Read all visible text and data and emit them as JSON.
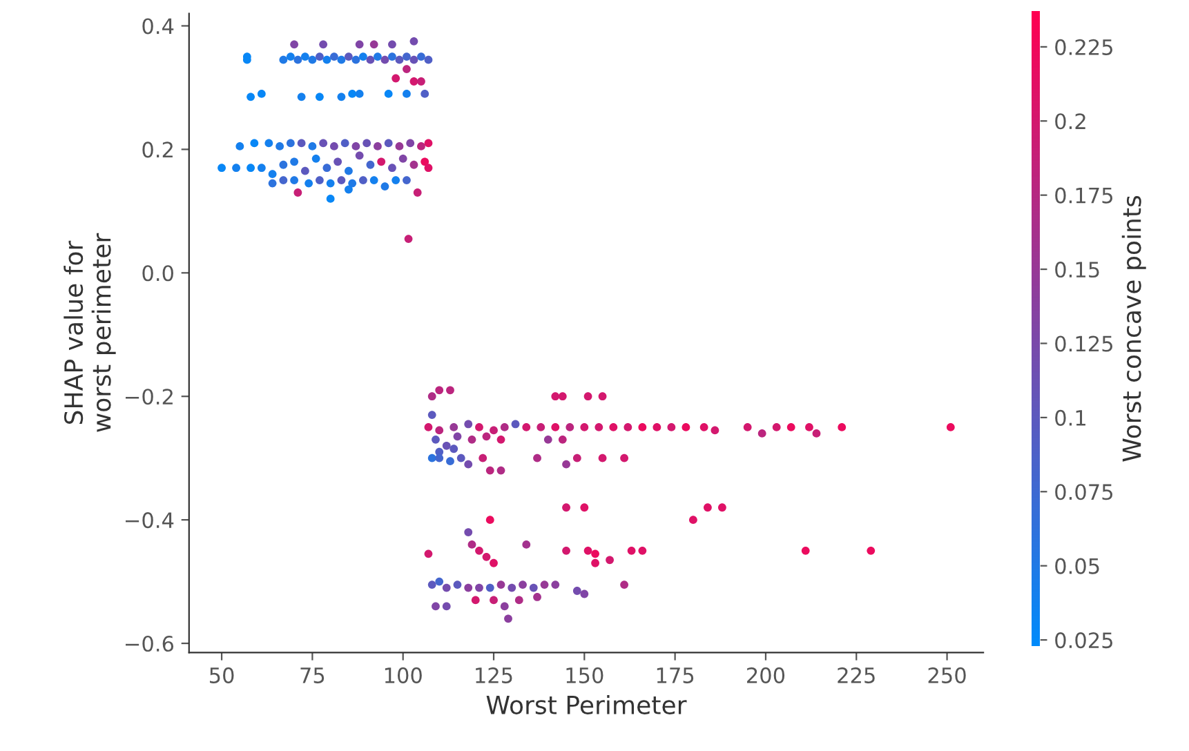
{
  "chart_data": {
    "type": "scatter",
    "xlabel": "Worst Perimeter",
    "ylabel": "SHAP value for\nworst perimeter",
    "clabel": "Worst concave points",
    "xlim": [
      41,
      260
    ],
    "ylim": [
      -0.615,
      0.42
    ],
    "xticks": [
      50,
      75,
      100,
      125,
      150,
      175,
      200,
      225,
      250
    ],
    "yticks": [
      -0.6,
      -0.4,
      -0.2,
      {
        "value": 0,
        "label": "0.0"
      },
      0.2,
      0.4
    ],
    "clim": [
      0.023,
      0.237
    ],
    "cticks": [
      0.025,
      0.05,
      0.075,
      0.1,
      0.125,
      0.15,
      0.175,
      0.2,
      0.225
    ],
    "marker": "circle",
    "grid": false,
    "legend": false,
    "series": [
      {
        "x": [
          57,
          57,
          67,
          69,
          71,
          73,
          75,
          77,
          79,
          81,
          83,
          85,
          87,
          89,
          91,
          93,
          95,
          97,
          99,
          101,
          103,
          105,
          107,
          70,
          78,
          88,
          92,
          97,
          103,
          98,
          101,
          103,
          105,
          58,
          61,
          72,
          77,
          83,
          86,
          88,
          96,
          101,
          106,
          55,
          59,
          63,
          66,
          69,
          72,
          75,
          78,
          81,
          84,
          87,
          90,
          93,
          96,
          99,
          102,
          105,
          107,
          50,
          54,
          58,
          61,
          64,
          67,
          70,
          73,
          76,
          79,
          82,
          85,
          88,
          91,
          94,
          97,
          100,
          103,
          106,
          107,
          64,
          67,
          70,
          74,
          77,
          80,
          83,
          86,
          89,
          92,
          95,
          98,
          101,
          71,
          80,
          85,
          104,
          101.5,
          108,
          110,
          113,
          142,
          144,
          151,
          155,
          108,
          107,
          110,
          114,
          118,
          121,
          125,
          128,
          131,
          134,
          138,
          142,
          146,
          150,
          154,
          158,
          162,
          166,
          170,
          174,
          178,
          183,
          186,
          195,
          199,
          203,
          207,
          212,
          214,
          221,
          251,
          109,
          112,
          115,
          119,
          123,
          127,
          140,
          144,
          110,
          114,
          108,
          110,
          113,
          116,
          118,
          122,
          137,
          145,
          148,
          155,
          161,
          124,
          127,
          145,
          150,
          180,
          184,
          188,
          124,
          118,
          119,
          121,
          123,
          125,
          134,
          107,
          145,
          151,
          153,
          153,
          157,
          163,
          166,
          211,
          229,
          108,
          110,
          112,
          115,
          118,
          121,
          124,
          127,
          130,
          133,
          136,
          139,
          142,
          148,
          150,
          161,
          109,
          112,
          120,
          125,
          128,
          129,
          132,
          137
        ],
        "values": [
          0.35,
          0.345,
          0.345,
          0.35,
          0.345,
          0.35,
          0.345,
          0.35,
          0.345,
          0.35,
          0.345,
          0.35,
          0.345,
          0.35,
          0.345,
          0.35,
          0.345,
          0.35,
          0.345,
          0.35,
          0.345,
          0.35,
          0.345,
          0.37,
          0.37,
          0.37,
          0.37,
          0.37,
          0.375,
          0.315,
          0.33,
          0.31,
          0.31,
          0.285,
          0.29,
          0.285,
          0.285,
          0.285,
          0.29,
          0.29,
          0.29,
          0.29,
          0.29,
          0.205,
          0.21,
          0.21,
          0.205,
          0.21,
          0.21,
          0.205,
          0.21,
          0.205,
          0.21,
          0.205,
          0.21,
          0.205,
          0.21,
          0.205,
          0.21,
          0.205,
          0.21,
          0.17,
          0.17,
          0.17,
          0.17,
          0.16,
          0.175,
          0.18,
          0.165,
          0.185,
          0.17,
          0.18,
          0.165,
          0.19,
          0.175,
          0.18,
          0.17,
          0.185,
          0.175,
          0.18,
          0.17,
          0.145,
          0.15,
          0.15,
          0.145,
          0.15,
          0.145,
          0.15,
          0.145,
          0.15,
          0.15,
          0.14,
          0.15,
          0.15,
          0.13,
          0.12,
          0.135,
          0.13,
          0.055,
          -0.2,
          -0.19,
          -0.19,
          -0.2,
          -0.2,
          -0.2,
          -0.2,
          -0.23,
          -0.25,
          -0.255,
          -0.25,
          -0.245,
          -0.25,
          -0.255,
          -0.25,
          -0.245,
          -0.25,
          -0.25,
          -0.25,
          -0.25,
          -0.25,
          -0.25,
          -0.25,
          -0.25,
          -0.25,
          -0.25,
          -0.25,
          -0.25,
          -0.25,
          -0.255,
          -0.25,
          -0.26,
          -0.25,
          -0.25,
          -0.25,
          -0.26,
          -0.25,
          -0.25,
          -0.27,
          -0.28,
          -0.265,
          -0.27,
          -0.265,
          -0.27,
          -0.27,
          -0.27,
          -0.29,
          -0.285,
          -0.3,
          -0.3,
          -0.305,
          -0.3,
          -0.31,
          -0.3,
          -0.3,
          -0.31,
          -0.3,
          -0.3,
          -0.3,
          -0.32,
          -0.32,
          -0.38,
          -0.38,
          -0.4,
          -0.38,
          -0.38,
          -0.4,
          -0.42,
          -0.44,
          -0.45,
          -0.46,
          -0.47,
          -0.44,
          -0.455,
          -0.45,
          -0.45,
          -0.455,
          -0.47,
          -0.465,
          -0.45,
          -0.45,
          -0.45,
          -0.45,
          -0.505,
          -0.5,
          -0.51,
          -0.505,
          -0.51,
          -0.51,
          -0.51,
          -0.505,
          -0.51,
          -0.505,
          -0.51,
          -0.505,
          -0.505,
          -0.515,
          -0.52,
          -0.505,
          -0.54,
          -0.54,
          -0.53,
          -0.53,
          -0.54,
          -0.56,
          -0.53,
          -0.525
        ],
        "cvalues": [
          0.03,
          0.03,
          0.05,
          0.04,
          0.06,
          0.04,
          0.05,
          0.09,
          0.04,
          0.07,
          0.05,
          0.1,
          0.06,
          0.04,
          0.11,
          0.05,
          0.12,
          0.06,
          0.1,
          0.08,
          0.11,
          0.07,
          0.09,
          0.13,
          0.12,
          0.13,
          0.15,
          0.12,
          0.12,
          0.2,
          0.18,
          0.2,
          0.19,
          0.03,
          0.03,
          0.04,
          0.03,
          0.04,
          0.03,
          0.04,
          0.03,
          0.04,
          0.09,
          0.04,
          0.03,
          0.04,
          0.05,
          0.06,
          0.1,
          0.05,
          0.11,
          0.12,
          0.09,
          0.13,
          0.11,
          0.14,
          0.1,
          0.15,
          0.13,
          0.18,
          0.21,
          0.03,
          0.04,
          0.03,
          0.04,
          0.04,
          0.06,
          0.05,
          0.1,
          0.04,
          0.07,
          0.11,
          0.05,
          0.12,
          0.08,
          0.2,
          0.11,
          0.13,
          0.16,
          0.22,
          0.21,
          0.06,
          0.08,
          0.05,
          0.04,
          0.09,
          0.04,
          0.1,
          0.05,
          0.09,
          0.04,
          0.05,
          0.04,
          0.08,
          0.19,
          0.03,
          0.04,
          0.19,
          0.19,
          0.17,
          0.18,
          0.18,
          0.2,
          0.2,
          0.2,
          0.2,
          0.1,
          0.2,
          0.18,
          0.15,
          0.12,
          0.2,
          0.19,
          0.17,
          0.1,
          0.2,
          0.19,
          0.21,
          0.18,
          0.2,
          0.2,
          0.21,
          0.2,
          0.22,
          0.21,
          0.2,
          0.22,
          0.21,
          0.2,
          0.2,
          0.18,
          0.2,
          0.22,
          0.21,
          0.19,
          0.22,
          0.22,
          0.1,
          0.11,
          0.13,
          0.17,
          0.18,
          0.2,
          0.15,
          0.18,
          0.09,
          0.1,
          0.06,
          0.08,
          0.07,
          0.1,
          0.12,
          0.19,
          0.17,
          0.15,
          0.19,
          0.2,
          0.2,
          0.18,
          0.17,
          0.2,
          0.21,
          0.21,
          0.21,
          0.21,
          0.22,
          0.12,
          0.17,
          0.2,
          0.2,
          0.21,
          0.16,
          0.2,
          0.2,
          0.21,
          0.22,
          0.21,
          0.2,
          0.21,
          0.21,
          0.22,
          0.22,
          0.1,
          0.08,
          0.12,
          0.1,
          0.14,
          0.13,
          0.09,
          0.15,
          0.12,
          0.14,
          0.11,
          0.15,
          0.14,
          0.12,
          0.13,
          0.17,
          0.13,
          0.12,
          0.2,
          0.19,
          0.14,
          0.14,
          0.17,
          0.16
        ]
      }
    ]
  }
}
